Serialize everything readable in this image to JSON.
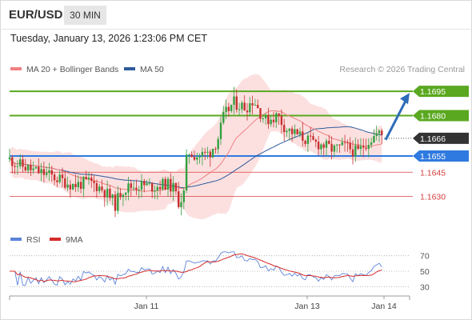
{
  "header": {
    "symbol": "EUR/USD",
    "timeframe": "30 MIN",
    "datetime": "Tuesday, January 13, 2026 1:23:06 PM CET"
  },
  "legend": {
    "ma20_label": "MA 20 + Bollinger Bands",
    "ma20_color": "#f08080",
    "ma50_label": "MA 50",
    "ma50_color": "#2e5b9a",
    "credit": "Research © 2026 Trading Central"
  },
  "colors": {
    "up_candle": "#33a040",
    "down_candle": "#c73030",
    "resistance": "#5aa820",
    "support_blue": "#2f7ae0",
    "support_red": "#d84040",
    "bb_fill": "#fbd6d6",
    "arrow": "#2d6cb8",
    "current_price_bg": "#333333",
    "rsi_color": "#5b84d8",
    "rsi_ma_color": "#d62b2b"
  },
  "chart_data": [
    {
      "type": "candlestick",
      "ylim": [
        1.1612,
        1.1703
      ],
      "x_ticks": [
        "Jan 11",
        "Jan 13",
        "Jan 14"
      ],
      "current_price": "1.1666",
      "levels": [
        {
          "value": 1.1695,
          "label": "1.1695",
          "kind": "resistance"
        },
        {
          "value": 1.168,
          "label": "1.1680",
          "kind": "resistance"
        },
        {
          "value": 1.1655,
          "label": "1.1655",
          "kind": "pivot"
        },
        {
          "value": 1.1645,
          "label": "1.1645",
          "kind": "support"
        },
        {
          "value": 1.163,
          "label": "1.1630",
          "kind": "support"
        }
      ],
      "forecast_arrow": {
        "from": 1.1665,
        "to": 1.1694
      },
      "series": [
        {
          "name": "MA 20 + Bollinger Bands"
        },
        {
          "name": "MA 50"
        }
      ]
    },
    {
      "type": "line",
      "ylim": [
        20,
        80
      ],
      "y_ticks": [
        "70",
        "50",
        "30"
      ],
      "series": [
        {
          "name": "RSI"
        },
        {
          "name": "9MA"
        }
      ]
    }
  ]
}
